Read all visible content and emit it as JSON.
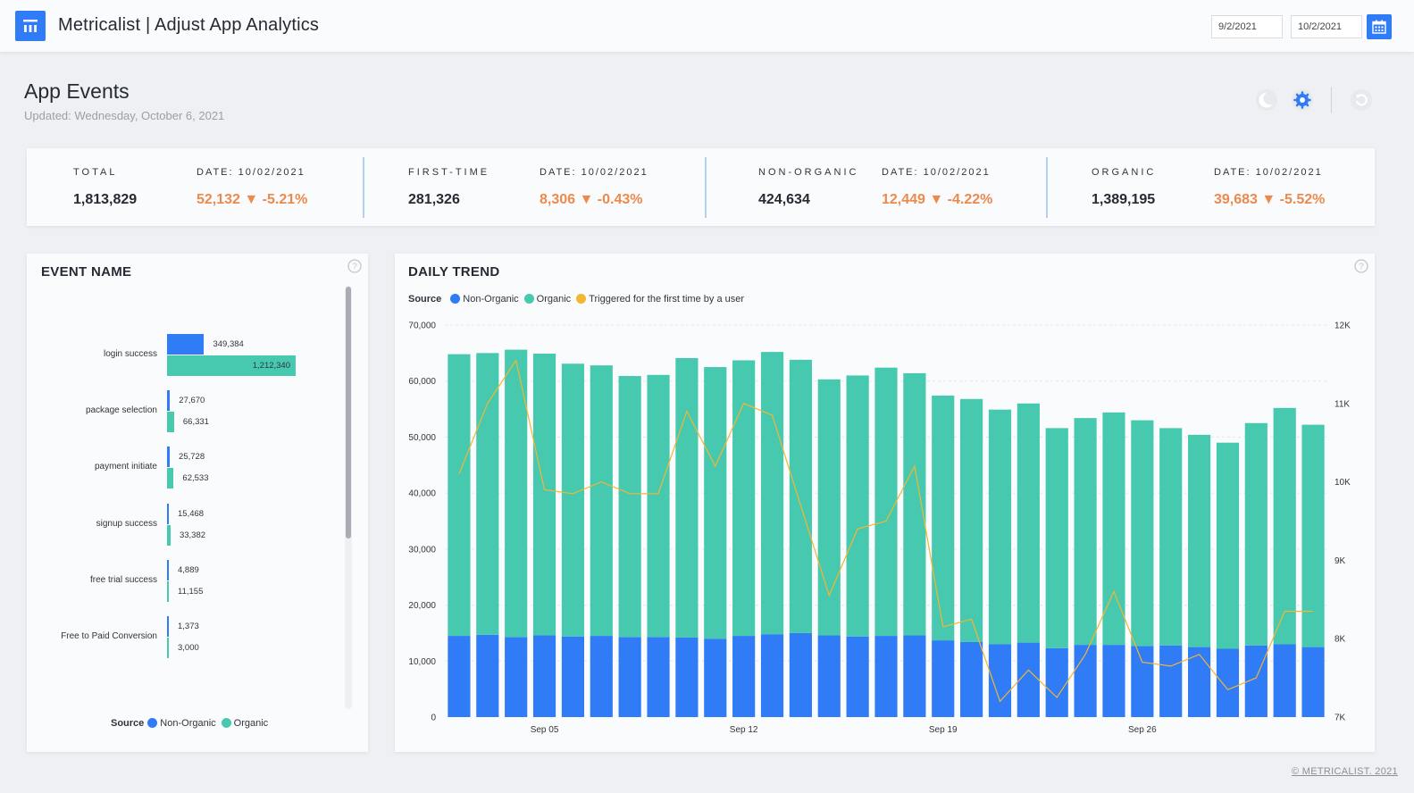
{
  "header": {
    "title": "Metricalist | Adjust App Analytics",
    "date_from": "9/2/2021",
    "date_to": "10/2/2021",
    "logo_icon": "dashboard-logo-icon",
    "calendar_icon": "calendar-icon"
  },
  "page": {
    "title": "App Events",
    "updated": "Updated: Wednesday, October 6, 2021",
    "tools": [
      "dark-mode-icon",
      "settings-icon",
      "reset-icon"
    ]
  },
  "kpis": [
    {
      "label": "TOTAL",
      "date": "DATE: 10/02/2021",
      "value": "1,813,829",
      "delta": "52,132 ▼ -5.21%"
    },
    {
      "label": "FIRST-TIME",
      "date": "DATE: 10/02/2021",
      "value": "281,326",
      "delta": "8,306 ▼ -0.43%"
    },
    {
      "label": "NON-ORGANIC",
      "date": "DATE: 10/02/2021",
      "value": "424,634",
      "delta": "12,449 ▼ -4.22%"
    },
    {
      "label": "ORGANIC",
      "date": "DATE: 10/02/2021",
      "value": "1,389,195",
      "delta": "39,683 ▼ -5.52%"
    }
  ],
  "colors": {
    "non_organic": "#2f7cf6",
    "organic": "#47c9b0",
    "first_time": "#f2b631",
    "delta": "#ec8a4d",
    "accent": "#2f7cf6"
  },
  "event_panel": {
    "title": "EVENT NAME",
    "legend_title": "Source",
    "legend": [
      "Non-Organic",
      "Organic"
    ]
  },
  "trend_panel": {
    "title": "DAILY TREND",
    "legend_title": "Source",
    "legend": [
      "Non-Organic",
      "Organic",
      "Triggered for the first time by a user"
    ]
  },
  "chart_data": [
    {
      "type": "bar",
      "orientation": "horizontal",
      "categories": [
        "login success",
        "package selection",
        "payment initiate",
        "signup success",
        "free trial success",
        "Free to Paid Conversion"
      ],
      "series": [
        {
          "name": "Non-Organic",
          "values": [
            349384,
            27670,
            25728,
            15468,
            4889,
            1373
          ],
          "labels": [
            "349,384",
            "27,670",
            "25,728",
            "15,468",
            "4,889",
            "1,373"
          ]
        },
        {
          "name": "Organic",
          "values": [
            1212340,
            66331,
            62533,
            33382,
            11155,
            3000
          ],
          "labels": [
            "1,212,340",
            "66,331",
            "62,533",
            "33,382",
            "11,155",
            "3,000"
          ]
        }
      ],
      "legend": "bottom"
    },
    {
      "type": "bar",
      "stacked": true,
      "x_ticks": [
        "Sep 05",
        "Sep 12",
        "Sep 19",
        "Sep 26"
      ],
      "y_ticks": [
        "0",
        "10,000",
        "20,000",
        "30,000",
        "40,000",
        "50,000",
        "60,000",
        "70,000"
      ],
      "y2_ticks": [
        "7K",
        "8K",
        "9K",
        "10K",
        "11K",
        "12K"
      ],
      "ylim": [
        0,
        70000
      ],
      "y2lim": [
        7000,
        12000
      ],
      "grid": "horizontal dashed",
      "legend": "top-left",
      "x": [
        "2021-09-02",
        "2021-09-03",
        "2021-09-04",
        "2021-09-05",
        "2021-09-06",
        "2021-09-07",
        "2021-09-08",
        "2021-09-09",
        "2021-09-10",
        "2021-09-11",
        "2021-09-12",
        "2021-09-13",
        "2021-09-14",
        "2021-09-15",
        "2021-09-16",
        "2021-09-17",
        "2021-09-18",
        "2021-09-19",
        "2021-09-20",
        "2021-09-21",
        "2021-09-22",
        "2021-09-23",
        "2021-09-24",
        "2021-09-25",
        "2021-09-26",
        "2021-09-27",
        "2021-09-28",
        "2021-09-29",
        "2021-09-30",
        "2021-10-01",
        "2021-10-02"
      ],
      "series": [
        {
          "name": "Non-Organic",
          "axis": "left",
          "values": [
            14500,
            14700,
            14300,
            14600,
            14400,
            14500,
            14300,
            14300,
            14200,
            14000,
            14500,
            14800,
            15000,
            14600,
            14400,
            14500,
            14600,
            13700,
            13400,
            13000,
            13300,
            12300,
            12900,
            12900,
            12700,
            12800,
            12500,
            12200,
            12800,
            13000,
            12500
          ]
        },
        {
          "name": "Organic",
          "axis": "left",
          "values": [
            50300,
            50300,
            51300,
            50300,
            48700,
            48300,
            46600,
            46800,
            49900,
            48500,
            49200,
            50400,
            48800,
            45700,
            46600,
            47900,
            46800,
            43700,
            43400,
            41900,
            42700,
            39300,
            40500,
            41500,
            40300,
            38800,
            37900,
            36800,
            39700,
            42200,
            39700
          ]
        },
        {
          "name": "Triggered for the first time by a user",
          "axis": "right",
          "values": [
            10100,
            11000,
            11550,
            9900,
            9850,
            10000,
            9850,
            9850,
            10900,
            10200,
            11000,
            10850,
            9700,
            8550,
            9400,
            9500,
            10200,
            8150,
            8250,
            7200,
            7600,
            7250,
            7800,
            8600,
            7700,
            7650,
            7800,
            7350,
            7500,
            8350,
            8350
          ]
        }
      ]
    }
  ],
  "footer": "© METRICALIST. 2021"
}
